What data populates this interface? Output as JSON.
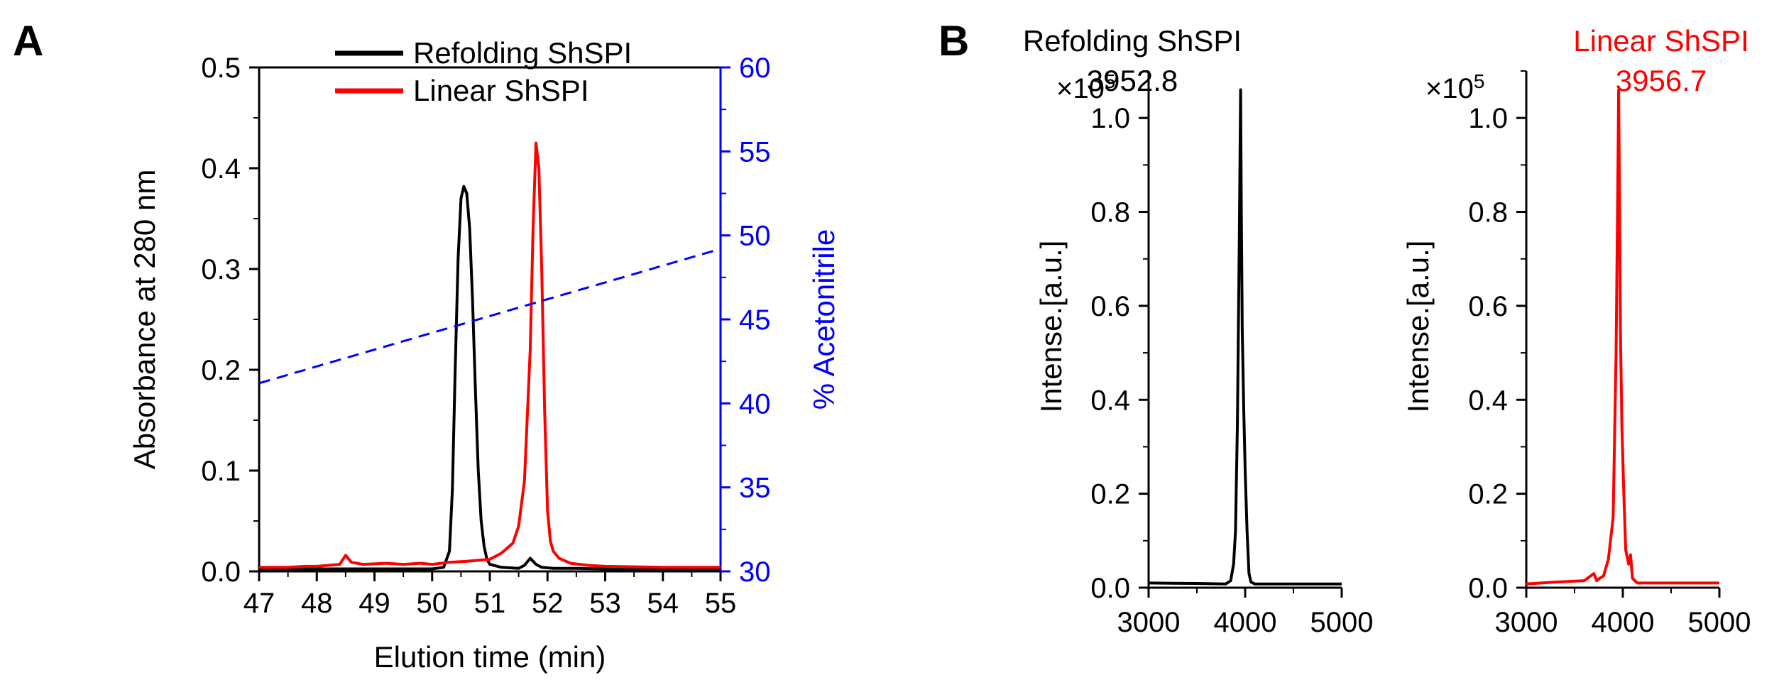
{
  "colors": {
    "refolding": "#000000",
    "linear": "#ff0000",
    "acetonitrile": "#0000ff",
    "axis": "#000000"
  },
  "chart_data": [
    {
      "panel": "A",
      "type": "line",
      "xlabel": "Elution time (min)",
      "ylabel": "Absorbance at 280 nm",
      "y2label": "% Acetonitrile",
      "xlim": [
        47,
        55
      ],
      "ylim": [
        0,
        0.5
      ],
      "y2lim": [
        30,
        60
      ],
      "xticks": [
        "47",
        "48",
        "49",
        "50",
        "51",
        "52",
        "53",
        "54",
        "55"
      ],
      "yticks": [
        "0.0",
        "0.1",
        "0.2",
        "0.3",
        "0.4",
        "0.5"
      ],
      "y2ticks": [
        "30",
        "35",
        "40",
        "45",
        "50",
        "55",
        "60"
      ],
      "legend": [
        "Refolding ShSPI",
        "Linear ShSPI"
      ],
      "series": [
        {
          "name": "Refolding ShSPI",
          "axis": "left",
          "color": "black",
          "x": [
            47,
            48,
            49,
            50,
            50.2,
            50.3,
            50.35,
            50.4,
            50.45,
            50.5,
            50.55,
            50.6,
            50.65,
            50.7,
            50.75,
            50.8,
            50.85,
            50.9,
            50.95,
            51.0,
            51.2,
            51.5,
            51.6,
            51.7,
            51.8,
            51.9,
            52.1,
            52.5,
            53,
            54,
            55
          ],
          "y": [
            0.0025,
            0.0025,
            0.0025,
            0.0025,
            0.004,
            0.02,
            0.08,
            0.2,
            0.31,
            0.37,
            0.382,
            0.375,
            0.34,
            0.27,
            0.18,
            0.1,
            0.05,
            0.025,
            0.012,
            0.007,
            0.004,
            0.003,
            0.006,
            0.013,
            0.007,
            0.004,
            0.003,
            0.003,
            0.0025,
            0.0025,
            0.0025
          ]
        },
        {
          "name": "Linear ShSPI",
          "axis": "left",
          "color": "red",
          "x": [
            47,
            47.5,
            47.8,
            48.0,
            48.4,
            48.5,
            48.6,
            48.8,
            49.2,
            49.5,
            49.8,
            50.0,
            50.3,
            50.6,
            51.0,
            51.2,
            51.4,
            51.5,
            51.6,
            51.7,
            51.75,
            51.8,
            51.85,
            51.9,
            51.95,
            52.0,
            52.05,
            52.1,
            52.2,
            52.4,
            52.7,
            53,
            54,
            55
          ],
          "y": [
            0.004,
            0.004,
            0.005,
            0.005,
            0.007,
            0.016,
            0.009,
            0.007,
            0.008,
            0.007,
            0.008,
            0.007,
            0.009,
            0.01,
            0.012,
            0.018,
            0.028,
            0.045,
            0.09,
            0.22,
            0.34,
            0.425,
            0.4,
            0.3,
            0.16,
            0.06,
            0.03,
            0.02,
            0.013,
            0.008,
            0.006,
            0.005,
            0.004,
            0.004
          ]
        },
        {
          "name": "% Acetonitrile",
          "axis": "right",
          "color": "blue",
          "style": "dashed",
          "x": [
            47,
            55
          ],
          "y": [
            41.2,
            49.2
          ]
        }
      ]
    },
    {
      "panel": "B-left",
      "type": "line",
      "title": "Refolding ShSPI",
      "peak_label": "3952.8",
      "ylabel": "Intense.[a.u.]",
      "multiplier": "×10",
      "multiplier_exp": "5",
      "xlim": [
        3000,
        5000
      ],
      "ylim": [
        0,
        1.1
      ],
      "xticks": [
        "3000",
        "4000",
        "5000"
      ],
      "yticks": [
        "0.0",
        "0.2",
        "0.4",
        "0.6",
        "0.8",
        "1.0"
      ],
      "series": [
        {
          "name": "Refolding ShSPI",
          "color": "black",
          "x": [
            3000,
            3500,
            3800,
            3850,
            3880,
            3900,
            3920,
            3940,
            3952.8,
            3960,
            3970,
            3985,
            4000,
            4020,
            4040,
            4060,
            4100,
            4500,
            5000
          ],
          "y": [
            0.01,
            0.009,
            0.008,
            0.015,
            0.05,
            0.12,
            0.35,
            0.75,
            1.06,
            0.8,
            0.55,
            0.38,
            0.25,
            0.12,
            0.03,
            0.012,
            0.008,
            0.008,
            0.008
          ]
        }
      ]
    },
    {
      "panel": "B-right",
      "type": "line",
      "title": "Linear ShSPI",
      "peak_label": "3956.7",
      "ylabel": "Intense.[a.u.]",
      "multiplier": "×10",
      "multiplier_exp": "5",
      "xlim": [
        3000,
        5000
      ],
      "ylim": [
        0,
        1.1
      ],
      "xticks": [
        "3000",
        "4000",
        "5000"
      ],
      "yticks": [
        "0.0",
        "0.2",
        "0.4",
        "0.6",
        "0.8",
        "1.0"
      ],
      "series": [
        {
          "name": "Linear ShSPI",
          "color": "red",
          "x": [
            3000,
            3300,
            3600,
            3700,
            3730,
            3760,
            3800,
            3850,
            3900,
            3930,
            3950,
            3956.7,
            3965,
            3975,
            3990,
            4010,
            4030,
            4060,
            4080,
            4100,
            4150,
            4500,
            5000
          ],
          "y": [
            0.008,
            0.012,
            0.015,
            0.03,
            0.015,
            0.02,
            0.025,
            0.06,
            0.15,
            0.5,
            0.9,
            1.06,
            0.85,
            0.55,
            0.35,
            0.2,
            0.08,
            0.05,
            0.07,
            0.02,
            0.01,
            0.01,
            0.01
          ]
        }
      ]
    }
  ],
  "panel_labels": [
    "A",
    "B"
  ]
}
